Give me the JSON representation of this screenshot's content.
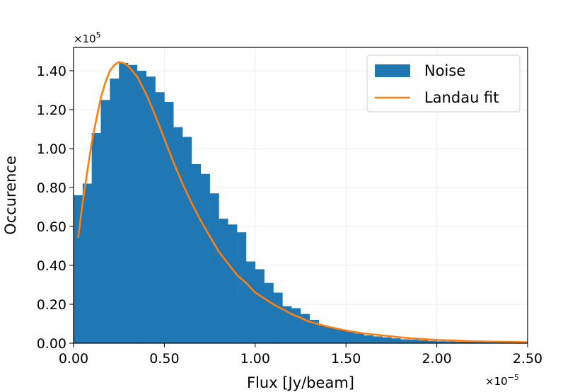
{
  "chart_data": {
    "type": "bar",
    "xlabel": "Flux [Jy/beam]",
    "ylabel": "Occurence",
    "x_multiplier_label": "×10",
    "x_multiplier_exp": "−5",
    "y_multiplier_label": "×10",
    "y_multiplier_exp": "5",
    "xlim": [
      0.0,
      2.5
    ],
    "ylim": [
      0.0,
      1.52
    ],
    "xticks": [
      0.0,
      0.5,
      1.0,
      1.5,
      2.0,
      2.5
    ],
    "xtick_labels": [
      "0.00",
      "0.50",
      "1.00",
      "1.50",
      "2.00",
      "2.50"
    ],
    "yticks": [
      0.0,
      0.2,
      0.4,
      0.6,
      0.8,
      1.0,
      1.2,
      1.4
    ],
    "ytick_labels": [
      "0.00",
      "0.20",
      "0.40",
      "0.60",
      "0.80",
      "1.00",
      "1.20",
      "1.40"
    ],
    "grid": true,
    "legend_position": "top-right",
    "bin_width": 0.05,
    "series": [
      {
        "name": "Noise",
        "kind": "histogram",
        "color": "#1f77b4",
        "bin_starts": [
          0.0,
          0.05,
          0.1,
          0.15,
          0.2,
          0.25,
          0.3,
          0.35,
          0.4,
          0.45,
          0.5,
          0.55,
          0.6,
          0.65,
          0.7,
          0.75,
          0.8,
          0.85,
          0.9,
          0.95,
          1.0,
          1.05,
          1.1,
          1.15,
          1.2,
          1.25,
          1.3,
          1.35,
          1.4,
          1.45,
          1.5,
          1.55,
          1.6,
          1.65,
          1.7,
          1.75,
          1.8,
          1.85,
          1.9,
          1.95,
          2.0,
          2.05,
          2.1,
          2.15,
          2.2,
          2.25,
          2.3,
          2.35,
          2.4,
          2.45
        ],
        "values": [
          0.76,
          0.82,
          1.08,
          1.25,
          1.36,
          1.44,
          1.43,
          1.4,
          1.37,
          1.29,
          1.24,
          1.11,
          1.06,
          0.92,
          0.87,
          0.77,
          0.64,
          0.61,
          0.57,
          0.42,
          0.38,
          0.31,
          0.26,
          0.19,
          0.18,
          0.15,
          0.12,
          0.09,
          0.08,
          0.07,
          0.06,
          0.05,
          0.04,
          0.035,
          0.03,
          0.025,
          0.02,
          0.018,
          0.015,
          0.012,
          0.01,
          0.009,
          0.008,
          0.007,
          0.006,
          0.005,
          0.004,
          0.004,
          0.003,
          0.003
        ]
      },
      {
        "name": "Landau fit",
        "kind": "line",
        "color": "#ff7f0e",
        "x": [
          0.025,
          0.05,
          0.075,
          0.1,
          0.125,
          0.15,
          0.175,
          0.2,
          0.225,
          0.25,
          0.275,
          0.3,
          0.35,
          0.4,
          0.45,
          0.5,
          0.55,
          0.6,
          0.65,
          0.7,
          0.75,
          0.8,
          0.85,
          0.9,
          0.95,
          1.0,
          1.1,
          1.2,
          1.3,
          1.4,
          1.5,
          1.6,
          1.7,
          1.8,
          1.9,
          2.0,
          2.2,
          2.5
        ],
        "y": [
          0.54,
          0.72,
          0.88,
          1.03,
          1.15,
          1.26,
          1.34,
          1.4,
          1.43,
          1.445,
          1.44,
          1.425,
          1.37,
          1.28,
          1.17,
          1.05,
          0.93,
          0.82,
          0.72,
          0.63,
          0.55,
          0.47,
          0.41,
          0.35,
          0.31,
          0.26,
          0.2,
          0.15,
          0.11,
          0.085,
          0.065,
          0.05,
          0.04,
          0.03,
          0.022,
          0.017,
          0.01,
          0.005
        ]
      }
    ]
  }
}
